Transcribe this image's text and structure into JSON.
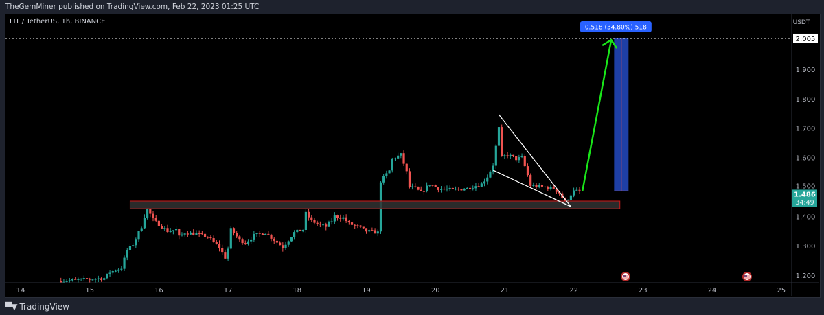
{
  "header": {
    "published": "TheGemMiner published on TradingView.com, Feb 22, 2023 01:25 UTC"
  },
  "symbol": {
    "title": "LIT / TetherUS, 1h, BINANCE"
  },
  "footer": {
    "brand": "TradingView",
    "logo_mark": "TV"
  },
  "colors": {
    "up": "#26a69a",
    "down": "#ef5350",
    "zone_border": "#d01818",
    "zone_fill": "#333333",
    "arrow": "#19e619",
    "target_box": "#1e3fa5",
    "label_bg": "#2962ff"
  },
  "price_axis": {
    "unit": "USDT",
    "ticks": [
      "1.200",
      "1.300",
      "1.400",
      "1.500",
      "1.600",
      "1.700",
      "1.800",
      "1.900"
    ],
    "target_label": "2.005",
    "last_price": "1.486",
    "countdown": "34:49"
  },
  "time_axis": {
    "ticks": [
      "14",
      "15",
      "16",
      "17",
      "18",
      "19",
      "20",
      "21",
      "22",
      "23",
      "24",
      "25"
    ]
  },
  "measure_label": "0.518 (34.80%) 518",
  "event_icons": [
    "us-flag-icon",
    "us-flag-icon"
  ],
  "chart_data": {
    "type": "candlestick",
    "interval": "1h",
    "ylim": [
      1.17,
      2.06
    ],
    "close_keypoints": [
      [
        "14 14:00",
        1.18
      ],
      [
        "15 05:00",
        1.19
      ],
      [
        "15 07:00",
        1.21
      ],
      [
        "15 11:00",
        1.225
      ],
      [
        "15 13:00",
        1.285
      ],
      [
        "15 15:00",
        1.305
      ],
      [
        "15 18:00",
        1.365
      ],
      [
        "15 19:00",
        1.4
      ],
      [
        "15 20:00",
        1.425
      ],
      [
        "15 22:00",
        1.39
      ],
      [
        "15 23:00",
        1.38
      ],
      [
        "16 03:00",
        1.35
      ],
      [
        "16 06:00",
        1.355
      ],
      [
        "16 07:00",
        1.33
      ],
      [
        "16 09:00",
        1.345
      ],
      [
        "16 13:00",
        1.34
      ],
      [
        "16 17:00",
        1.33
      ],
      [
        "16 21:00",
        1.295
      ],
      [
        "16 23:00",
        1.26
      ],
      [
        "17 00:00",
        1.29
      ],
      [
        "17 01:00",
        1.355
      ],
      [
        "17 04:00",
        1.32
      ],
      [
        "17 06:00",
        1.31
      ],
      [
        "17 09:00",
        1.335
      ],
      [
        "17 13:00",
        1.345
      ],
      [
        "17 16:00",
        1.32
      ],
      [
        "17 19:00",
        1.295
      ],
      [
        "17 21:00",
        1.32
      ],
      [
        "17 23:00",
        1.345
      ],
      [
        "18 02:00",
        1.355
      ],
      [
        "18 03:00",
        1.41
      ],
      [
        "18 05:00",
        1.385
      ],
      [
        "18 08:00",
        1.37
      ],
      [
        "18 10:00",
        1.365
      ],
      [
        "18 12:00",
        1.385
      ],
      [
        "18 13:00",
        1.4
      ],
      [
        "18 16:00",
        1.395
      ],
      [
        "18 18:00",
        1.375
      ],
      [
        "18 21:00",
        1.365
      ],
      [
        "19 00:00",
        1.35
      ],
      [
        "19 04:00",
        1.345
      ],
      [
        "19 05:00",
        1.52
      ],
      [
        "19 08:00",
        1.555
      ],
      [
        "19 09:00",
        1.595
      ],
      [
        "19 12:00",
        1.61
      ],
      [
        "19 14:00",
        1.55
      ],
      [
        "19 15:00",
        1.5
      ],
      [
        "19 17:00",
        1.495
      ],
      [
        "19 19:00",
        1.48
      ],
      [
        "19 22:00",
        1.51
      ],
      [
        "20 01:00",
        1.495
      ],
      [
        "20 06:00",
        1.49
      ],
      [
        "20 11:00",
        1.495
      ],
      [
        "20 16:00",
        1.51
      ],
      [
        "20 18:00",
        1.535
      ],
      [
        "20 20:00",
        1.575
      ],
      [
        "20 22:00",
        1.7
      ],
      [
        "20 23:00",
        1.6
      ],
      [
        "21 01:00",
        1.61
      ],
      [
        "21 04:00",
        1.595
      ],
      [
        "21 06:00",
        1.6
      ],
      [
        "21 08:00",
        1.54
      ],
      [
        "21 09:00",
        1.505
      ],
      [
        "21 13:00",
        1.5
      ],
      [
        "21 17:00",
        1.495
      ],
      [
        "21 19:00",
        1.48
      ],
      [
        "21 21:00",
        1.445
      ],
      [
        "21 23:00",
        1.475
      ],
      [
        "22 00:00",
        1.485
      ],
      [
        "22 02:00",
        1.486
      ]
    ],
    "annotations": {
      "support_zone": {
        "from": "15 14:00",
        "to": "22 16:00",
        "low": 1.426,
        "high": 1.452
      },
      "wedge": [
        [
          [
            "20 22:00",
            1.746
          ],
          [
            "21 23:00",
            1.433
          ]
        ],
        [
          [
            "20 20:00",
            1.557
          ],
          [
            "21 23:00",
            1.433
          ]
        ]
      ],
      "arrow": [
        [
          "22 03:00",
          1.486
        ],
        [
          "22 13:00",
          2.0
        ]
      ],
      "target": {
        "from": "22 14:00",
        "to": "22 19:00",
        "low": 1.486,
        "high": 2.005
      }
    }
  }
}
